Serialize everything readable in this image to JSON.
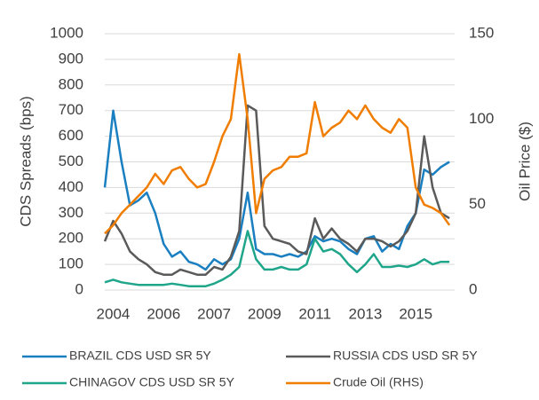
{
  "chart_data": {
    "type": "line",
    "ylabel": "CDS Spreads (bps)",
    "y2label": "Oil Price ($)",
    "categories": [
      null,
      "2004",
      null,
      null,
      null,
      null,
      null,
      "2006",
      null,
      null,
      null,
      null,
      null,
      "2007",
      null,
      null,
      null,
      null,
      null,
      "2009",
      null,
      null,
      null,
      null,
      null,
      "2011",
      null,
      null,
      null,
      null,
      null,
      "2013",
      null,
      null,
      null,
      null,
      null,
      "2015",
      null,
      null,
      null,
      null
    ],
    "series": [
      {
        "name": "BRAZIL CDS USD SR 5Y",
        "color": "#1a7fc1",
        "values": [
          400,
          700,
          500,
          330,
          350,
          380,
          300,
          180,
          130,
          150,
          110,
          100,
          80,
          120,
          100,
          120,
          200,
          380,
          160,
          140,
          140,
          130,
          140,
          130,
          150,
          210,
          190,
          200,
          190,
          160,
          140,
          200,
          210,
          150,
          180,
          160,
          250,
          300,
          470,
          450,
          480,
          500
        ]
      },
      {
        "name": "RUSSIA CDS USD SR 5Y",
        "color": "#5a5a5a",
        "values": [
          190,
          270,
          220,
          150,
          120,
          100,
          70,
          60,
          60,
          80,
          70,
          60,
          60,
          90,
          80,
          130,
          230,
          720,
          700,
          250,
          200,
          190,
          180,
          150,
          140,
          280,
          200,
          240,
          200,
          180,
          150,
          200,
          200,
          190,
          170,
          190,
          230,
          300,
          600,
          400,
          300,
          280
        ]
      },
      {
        "name": "CHINAGOV CDS USD SR 5Y",
        "color": "#1ea58a",
        "values": [
          30,
          40,
          30,
          25,
          20,
          20,
          20,
          20,
          25,
          20,
          15,
          15,
          15,
          25,
          40,
          60,
          90,
          230,
          120,
          80,
          80,
          90,
          80,
          80,
          100,
          200,
          150,
          160,
          140,
          100,
          70,
          100,
          140,
          90,
          90,
          95,
          90,
          100,
          120,
          100,
          110,
          110
        ]
      },
      {
        "name": "Crude Oil (RHS)",
        "color": "#f07d00",
        "axis": "y2",
        "values": [
          33,
          38,
          45,
          50,
          55,
          60,
          68,
          62,
          70,
          72,
          65,
          60,
          62,
          75,
          90,
          100,
          138,
          100,
          45,
          65,
          70,
          72,
          78,
          78,
          80,
          110,
          90,
          95,
          98,
          105,
          100,
          108,
          100,
          95,
          92,
          100,
          95,
          60,
          50,
          48,
          45,
          38
        ]
      }
    ],
    "ylim": [
      0,
      1000
    ],
    "yticks": [
      0,
      100,
      200,
      300,
      400,
      500,
      600,
      700,
      800,
      900,
      1000
    ],
    "y2lim": [
      0,
      150
    ],
    "y2ticks": [
      0,
      50,
      100,
      150
    ],
    "grid": true,
    "legend": "bottom"
  }
}
